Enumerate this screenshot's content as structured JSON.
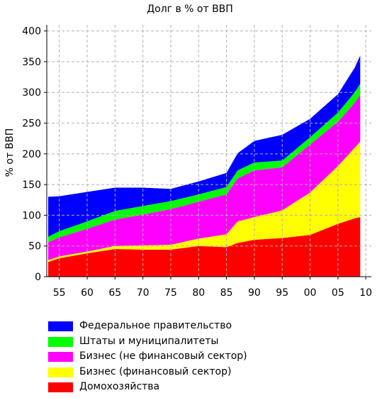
{
  "chart_data": {
    "type": "area",
    "stacked": true,
    "title": "Долг в % от ВВП",
    "ylabel": "% от ВВП",
    "xlabel": "",
    "xlim": [
      1952.75,
      2011
    ],
    "ylim": [
      0,
      410
    ],
    "grid": true,
    "legend_position": "bottom",
    "x_ticks": [
      1955,
      1960,
      1965,
      1970,
      1975,
      1980,
      1985,
      1990,
      1995,
      2000,
      2005,
      2010
    ],
    "x_tick_labels": [
      "55",
      "60",
      "65",
      "70",
      "75",
      "80",
      "85",
      "90",
      "95",
      "00",
      "05",
      "10"
    ],
    "y_ticks": [
      0,
      50,
      100,
      150,
      200,
      250,
      300,
      350,
      400
    ],
    "y_tick_labels": [
      "0",
      "50",
      "100",
      "150",
      "200",
      "250",
      "300",
      "350",
      "400"
    ],
    "x": [
      1953,
      1955,
      1960,
      1965,
      1970,
      1975,
      1980,
      1985,
      1987,
      1990,
      1995,
      2000,
      2005,
      2008,
      2009
    ],
    "series": [
      {
        "name": "Домохозяйства",
        "color": "#ff0000",
        "values": [
          24,
          30,
          38,
          45,
          44,
          44,
          50,
          48,
          55,
          60,
          63,
          68,
          86,
          95,
          97
        ]
      },
      {
        "name": "Бизнес (финансовый сектор)",
        "color": "#ffff00",
        "values": [
          3,
          3,
          3,
          5,
          7,
          8,
          12,
          21,
          35,
          37,
          45,
          69,
          94,
          115,
          123
        ]
      },
      {
        "name": "Бизнес (не финансовый сектор)",
        "color": "#ff00ff",
        "values": [
          29,
          31,
          37,
          43,
          50,
          58,
          60,
          65,
          70,
          76,
          70,
          78,
          72,
          73,
          76
        ]
      },
      {
        "name": "Штаты и муниципалитеты",
        "color": "#00ff00",
        "values": [
          9,
          10,
          12,
          14,
          14,
          13,
          12,
          12,
          13,
          13,
          11,
          12,
          15,
          17,
          18
        ]
      },
      {
        "name": "Федеральное правительство",
        "color": "#0000ff",
        "values": [
          65,
          57,
          48,
          38,
          30,
          20,
          21,
          23,
          28,
          35,
          42,
          30,
          30,
          40,
          46
        ]
      }
    ]
  }
}
